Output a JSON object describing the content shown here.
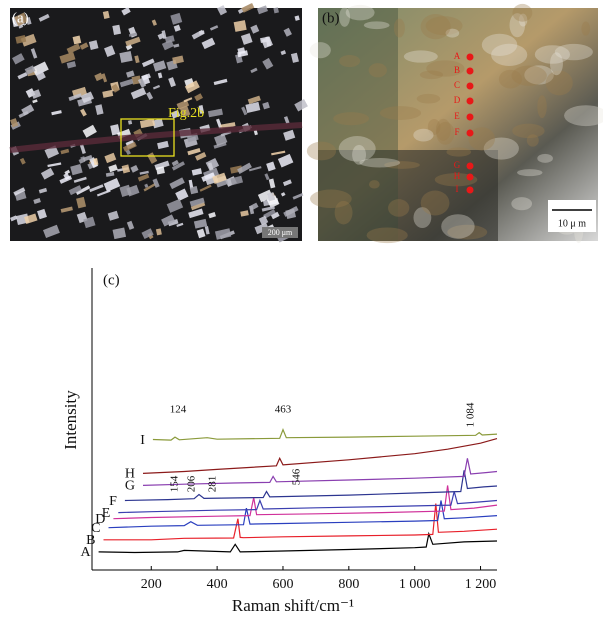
{
  "panels": {
    "a": {
      "label": "(a)",
      "annotation": "Fig.2b",
      "scale": "200 μm"
    },
    "b": {
      "label": "(b)",
      "points": [
        "A",
        "B",
        "C",
        "D",
        "E",
        "F",
        "G",
        "H",
        "I"
      ],
      "scale": "10 μ m"
    }
  },
  "chart_data": {
    "type": "line",
    "panel_label": "(c)",
    "x_label": "Raman shift/cm⁻¹",
    "y_label": "Intensity",
    "xlim": [
      20,
      1250
    ],
    "ylim": [
      0,
      100
    ],
    "xticks": [
      200,
      400,
      600,
      800,
      {
        "value": 1000,
        "label": "1 000"
      },
      {
        "value": 1200,
        "label": "1 200"
      }
    ],
    "annotations": [
      "124",
      "463",
      "1 084",
      "154",
      "206",
      "281",
      "546"
    ],
    "series": [
      {
        "name": "A",
        "color": "#000000",
        "x": [
          40,
          150,
          280,
          300,
          440,
          455,
          470,
          600,
          800,
          1000,
          1035,
          1043,
          1055,
          1150,
          1250
        ],
        "values": [
          6,
          5.8,
          6,
          6.5,
          6,
          8.5,
          6,
          6.3,
          6.8,
          7.4,
          7.6,
          12,
          8.5,
          9.3,
          9.6
        ]
      },
      {
        "name": "B",
        "color": "#e8202a",
        "x": [
          55,
          200,
          300,
          450,
          463,
          470,
          480,
          600,
          800,
          1000,
          1055,
          1064,
          1072,
          1150,
          1250
        ],
        "values": [
          10,
          10,
          10.5,
          10.6,
          17,
          10.8,
          10.7,
          11,
          11.3,
          11.6,
          11.8,
          22,
          12.5,
          12.8,
          13.5
        ]
      },
      {
        "name": "C",
        "color": "#2a3fbf",
        "x": [
          70,
          200,
          300,
          320,
          340,
          480,
          489,
          500,
          600,
          800,
          1000,
          1070,
          1080,
          1090,
          1150,
          1250
        ],
        "values": [
          14,
          14.5,
          14.7,
          16,
          14.8,
          15,
          20.5,
          15.2,
          15.4,
          15.8,
          16.2,
          16.4,
          23,
          17,
          17.3,
          18
        ]
      },
      {
        "name": "D",
        "color": "#d0309a",
        "x": [
          85,
          200,
          400,
          500,
          511,
          520,
          700,
          900,
          1090,
          1100,
          1110,
          1180,
          1250
        ],
        "values": [
          17,
          17.4,
          17.8,
          18,
          24,
          18.3,
          18.6,
          19,
          19.5,
          28,
          20,
          20.5,
          21.5
        ]
      },
      {
        "name": "E",
        "color": "#3b3fb0",
        "x": [
          100,
          200,
          400,
          520,
          530,
          540,
          700,
          900,
          1110,
          1120,
          1130,
          1190,
          1250
        ],
        "values": [
          19,
          19.3,
          19.8,
          20,
          23,
          20.2,
          20.6,
          21,
          21.5,
          26,
          22,
          22.5,
          23
        ]
      },
      {
        "name": "F",
        "color": "#2c3590",
        "x": [
          120,
          250,
          330,
          345,
          360,
          540,
          550,
          560,
          800,
          1000,
          1140,
          1150,
          1160,
          1210,
          1250
        ],
        "values": [
          23,
          23.3,
          23.6,
          25,
          23.7,
          24,
          26,
          24.2,
          24.8,
          25.5,
          26,
          33,
          27,
          27.5,
          27.8
        ]
      },
      {
        "name": "G",
        "color": "#8a3fb0",
        "x": [
          175,
          300,
          450,
          560,
          570,
          580,
          800,
          1000,
          1150,
          1160,
          1170,
          1220,
          1250
        ],
        "values": [
          28,
          28.4,
          28.8,
          29,
          31,
          29.2,
          29.8,
          30.4,
          31,
          37,
          31.8,
          32.3,
          32.6
        ]
      },
      {
        "name": "H",
        "color": "#8b1a1a",
        "x": [
          175,
          300,
          400,
          580,
          590,
          600,
          800,
          1000,
          1100,
          1200,
          1250
        ],
        "values": [
          32,
          32.6,
          33.3,
          34.5,
          37,
          34.8,
          36.5,
          38.5,
          40,
          42,
          43.5
        ]
      },
      {
        "name": "I",
        "color": "#8a9a3a",
        "x": [
          205,
          260,
          272,
          285,
          370,
          400,
          590,
          600,
          610,
          800,
          1000,
          1185,
          1196,
          1205,
          1250
        ],
        "values": [
          43.2,
          43,
          44,
          43.1,
          43.8,
          43.3,
          43.6,
          46.5,
          43.8,
          44,
          44.3,
          44.6,
          45.5,
          44.7,
          45
        ]
      }
    ]
  }
}
